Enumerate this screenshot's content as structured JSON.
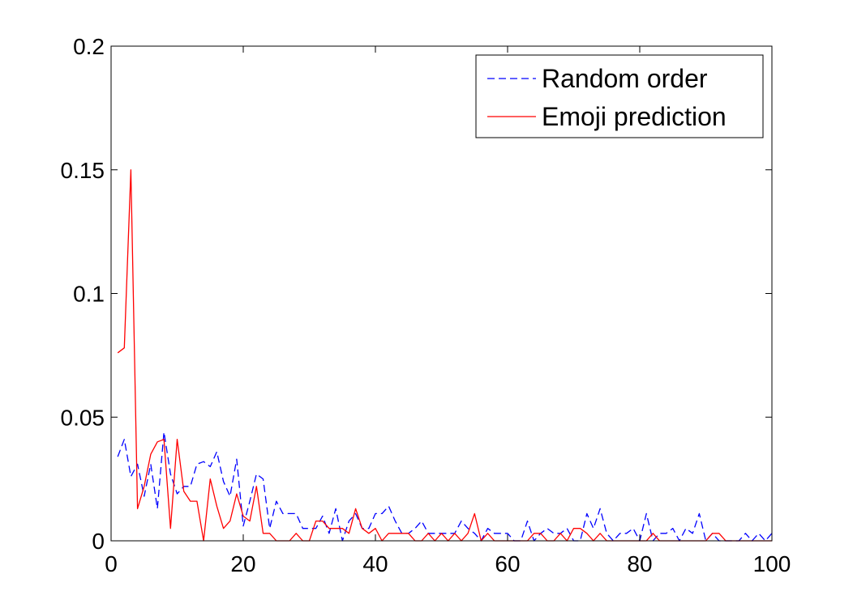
{
  "chart_data": {
    "type": "line",
    "title": "",
    "xlabel": "",
    "ylabel": "",
    "xlim": [
      0,
      100
    ],
    "ylim": [
      0,
      0.2
    ],
    "xticks": [
      0,
      20,
      40,
      60,
      80,
      100
    ],
    "yticks": [
      0,
      0.05,
      0.1,
      0.15,
      0.2
    ],
    "xtick_labels": [
      "0",
      "20",
      "40",
      "60",
      "80",
      "100"
    ],
    "ytick_labels": [
      "0",
      "0.05",
      "0.1",
      "0.15",
      "0.2"
    ],
    "grid": false,
    "legend_position": "top-right",
    "x": [
      1,
      2,
      3,
      4,
      5,
      6,
      7,
      8,
      9,
      10,
      11,
      12,
      13,
      14,
      15,
      16,
      17,
      18,
      19,
      20,
      21,
      22,
      23,
      24,
      25,
      26,
      27,
      28,
      29,
      30,
      31,
      32,
      33,
      34,
      35,
      36,
      37,
      38,
      39,
      40,
      41,
      42,
      43,
      44,
      45,
      46,
      47,
      48,
      49,
      50,
      51,
      52,
      53,
      54,
      55,
      56,
      57,
      58,
      59,
      60,
      61,
      62,
      63,
      64,
      65,
      66,
      67,
      68,
      69,
      70,
      71,
      72,
      73,
      74,
      75,
      76,
      77,
      78,
      79,
      80,
      81,
      82,
      83,
      84,
      85,
      86,
      87,
      88,
      89,
      90,
      91,
      92,
      93,
      94,
      95,
      96,
      97,
      98,
      99,
      100
    ],
    "series": [
      {
        "name": "Random order",
        "color": "#0000ff",
        "style": "dashed",
        "values": [
          0.034,
          0.041,
          0.026,
          0.031,
          0.018,
          0.031,
          0.013,
          0.044,
          0.027,
          0.019,
          0.022,
          0.022,
          0.031,
          0.032,
          0.03,
          0.036,
          0.024,
          0.018,
          0.033,
          0.006,
          0.016,
          0.027,
          0.025,
          0.005,
          0.016,
          0.011,
          0.011,
          0.011,
          0.005,
          0.005,
          0.005,
          0.01,
          0.003,
          0.013,
          0.0,
          0.008,
          0.011,
          0.005,
          0.005,
          0.011,
          0.011,
          0.014,
          0.008,
          0.003,
          0.003,
          0.005,
          0.008,
          0.003,
          0.003,
          0.003,
          0.003,
          0.003,
          0.008,
          0.005,
          0.003,
          0.0,
          0.005,
          0.003,
          0.003,
          0.003,
          0.0,
          0.0,
          0.008,
          0.0,
          0.003,
          0.005,
          0.003,
          0.003,
          0.005,
          0.0,
          0.0,
          0.011,
          0.005,
          0.013,
          0.003,
          0.0,
          0.003,
          0.003,
          0.005,
          0.0,
          0.011,
          0.0,
          0.003,
          0.003,
          0.005,
          0.0,
          0.005,
          0.003,
          0.011,
          0.0,
          0.003,
          0.0,
          0.0,
          0.0,
          0.0,
          0.003,
          0.0,
          0.003,
          0.0,
          0.003
        ]
      },
      {
        "name": "Emoji prediction",
        "color": "#ff0000",
        "style": "solid",
        "values": [
          0.076,
          0.078,
          0.15,
          0.013,
          0.022,
          0.035,
          0.04,
          0.041,
          0.005,
          0.041,
          0.02,
          0.016,
          0.016,
          0.0,
          0.025,
          0.014,
          0.005,
          0.008,
          0.019,
          0.01,
          0.008,
          0.022,
          0.003,
          0.003,
          0.0,
          0.0,
          0.0,
          0.003,
          0.0,
          0.0,
          0.008,
          0.008,
          0.005,
          0.005,
          0.005,
          0.003,
          0.013,
          0.005,
          0.003,
          0.005,
          0.0,
          0.003,
          0.003,
          0.003,
          0.003,
          0.0,
          0.0,
          0.003,
          0.0,
          0.003,
          0.0,
          0.003,
          0.0,
          0.003,
          0.011,
          0.0,
          0.003,
          0.0,
          0.0,
          0.0,
          0.0,
          0.0,
          0.0,
          0.003,
          0.003,
          0.0,
          0.0,
          0.003,
          0.0,
          0.005,
          0.005,
          0.003,
          0.0,
          0.003,
          0.0,
          0.0,
          0.0,
          0.0,
          0.0,
          0.0,
          0.0,
          0.003,
          0.0,
          0.0,
          0.0,
          0.0,
          0.0,
          0.0,
          0.0,
          0.0,
          0.003,
          0.003,
          0.0,
          0.0,
          0.0,
          0.0,
          0.0,
          0.0,
          0.0,
          0.0
        ]
      }
    ]
  }
}
